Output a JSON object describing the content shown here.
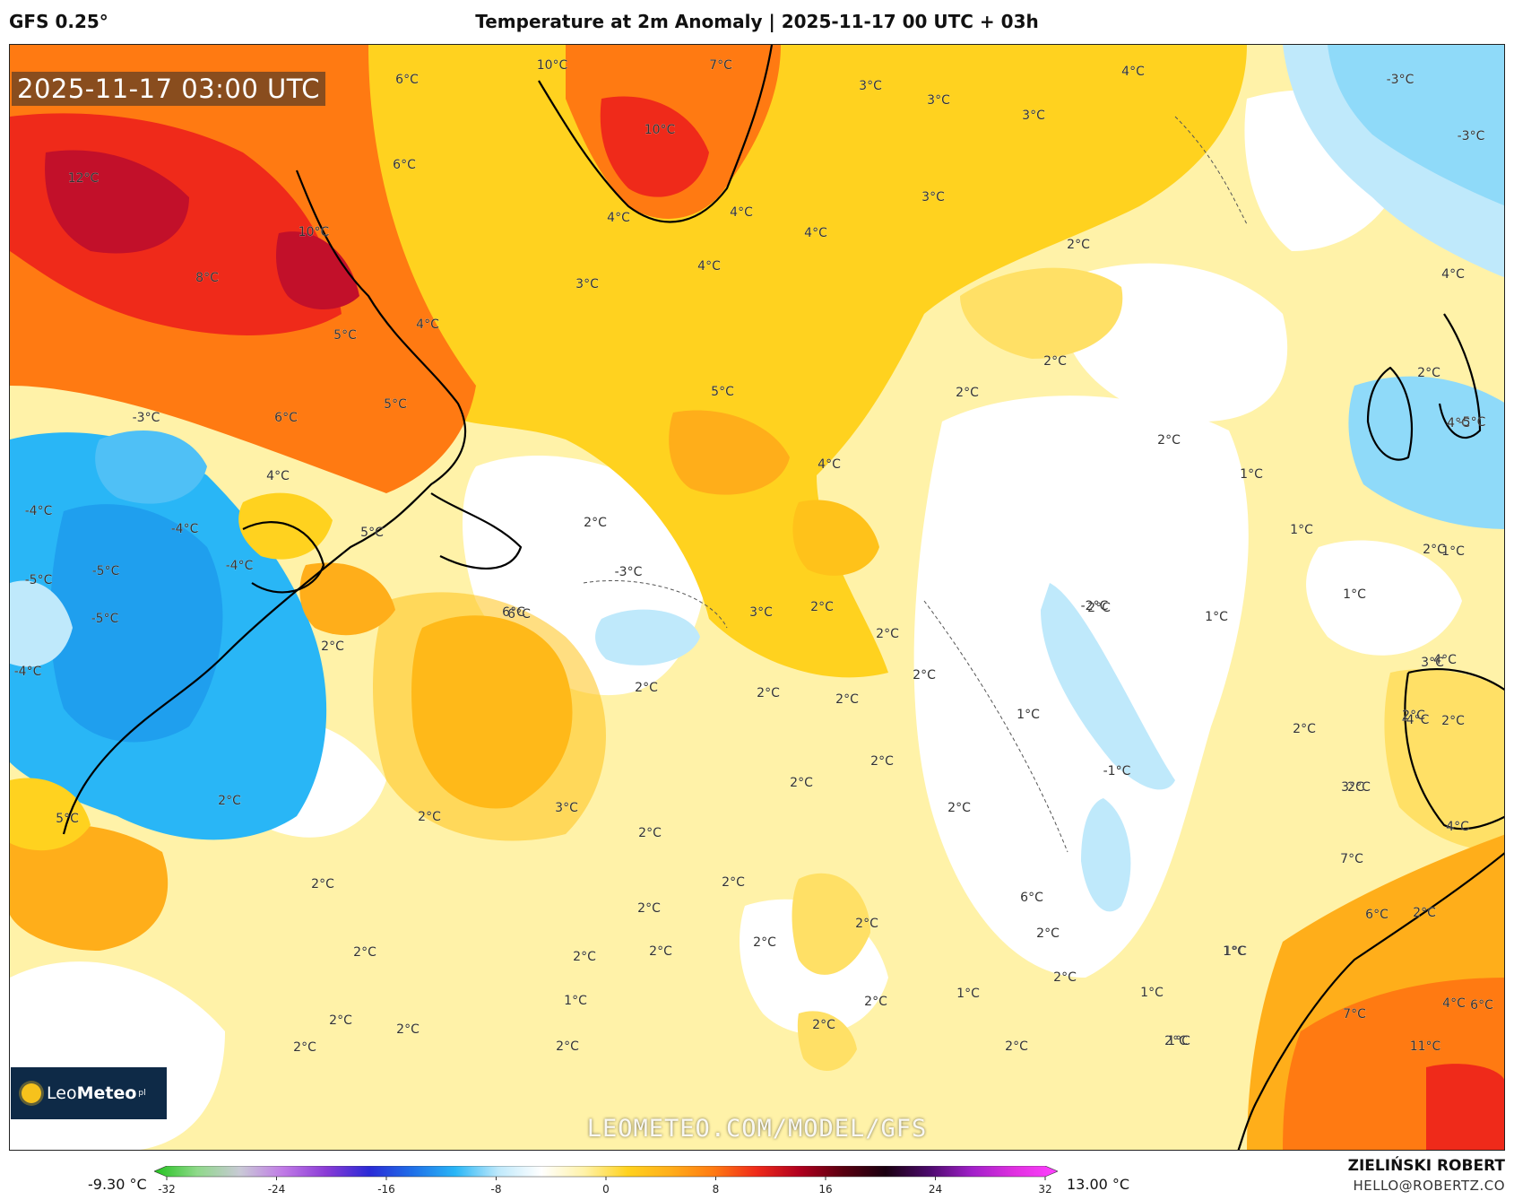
{
  "header": {
    "model": "GFS 0.25°",
    "title": "Temperature at 2m Anomaly | 2025-11-17 00 UTC + 03h"
  },
  "valid_time": "2025-11-17 03:00 UTC",
  "watermark": "LEOMETEO.COM/MODEL/GFS",
  "logo": {
    "brand_light": "Leo",
    "brand_bold": "Meteo",
    "suffix": "pl"
  },
  "legend": {
    "min_label": "-9.30 °C",
    "max_label": "13.00 °C",
    "ticks": [
      "-32",
      "-24",
      "-16",
      "-8",
      "0",
      "8",
      "16",
      "24",
      "32"
    ],
    "tick_values": [
      -32,
      -24,
      -16,
      -8,
      0,
      8,
      16,
      24,
      32
    ],
    "range": [
      -32,
      32
    ],
    "colors": [
      "#22c21e",
      "#8fd98a",
      "#c9c9d6",
      "#c07ae6",
      "#8a3bd6",
      "#2a2ad6",
      "#1f6fe8",
      "#29b6f6",
      "#bfe9fb",
      "#ffffff",
      "#fff2a8",
      "#ffd21f",
      "#ffae1a",
      "#ff7a12",
      "#ef2a1a",
      "#b0001e",
      "#5a0010",
      "#1a0010",
      "#4a0a6a",
      "#a020c8",
      "#e030e0",
      "#ff40ff"
    ]
  },
  "author": "ZIELIŃSKI ROBERT",
  "email": "HELLO@ROBERTZ.CO",
  "map_labels": [
    {
      "t": "12°C"
    },
    {
      "t": "10°C"
    },
    {
      "t": "8°C"
    },
    {
      "t": "6°C"
    },
    {
      "t": "6°C"
    },
    {
      "t": "5°C"
    },
    {
      "t": "5°C"
    },
    {
      "t": "6°C"
    },
    {
      "t": "4°C"
    },
    {
      "t": "-3°C"
    },
    {
      "t": "4°C"
    },
    {
      "t": "-4°C"
    },
    {
      "t": "-4°C"
    },
    {
      "t": "-5°C"
    },
    {
      "t": "-5°C"
    },
    {
      "t": "-5°C"
    },
    {
      "t": "-4°C"
    },
    {
      "t": "-4°C"
    },
    {
      "t": "5°C"
    },
    {
      "t": "6°C"
    },
    {
      "t": "5°C"
    },
    {
      "t": "2°C"
    },
    {
      "t": "2°C"
    },
    {
      "t": "10°C"
    },
    {
      "t": "7°C"
    },
    {
      "t": "10°C"
    },
    {
      "t": "3°C"
    },
    {
      "t": "3°C"
    },
    {
      "t": "3°C"
    },
    {
      "t": "4°C"
    },
    {
      "t": "-3°C"
    },
    {
      "t": "-3°C"
    },
    {
      "t": "3°C"
    },
    {
      "t": "4°C"
    },
    {
      "t": "4°C"
    },
    {
      "t": "4°C"
    },
    {
      "t": "4°C"
    },
    {
      "t": "3°C"
    },
    {
      "t": "2°C"
    },
    {
      "t": "5°C"
    },
    {
      "t": "2°C"
    },
    {
      "t": "2°C"
    },
    {
      "t": "4°C"
    },
    {
      "t": "2°C"
    },
    {
      "t": "1°C"
    },
    {
      "t": "2°C"
    },
    {
      "t": "-3°C"
    },
    {
      "t": "2°C"
    },
    {
      "t": "6°C"
    },
    {
      "t": "3°C"
    },
    {
      "t": "2°C"
    },
    {
      "t": "2°C"
    },
    {
      "t": "2°C"
    },
    {
      "t": "2°C"
    },
    {
      "t": "2°C"
    },
    {
      "t": "2°C"
    },
    {
      "t": "-2°C"
    },
    {
      "t": "1°C"
    },
    {
      "t": "1°C"
    },
    {
      "t": "1°C"
    },
    {
      "t": "1°C"
    },
    {
      "t": "-1°C"
    },
    {
      "t": "2°C"
    },
    {
      "t": "2°C"
    },
    {
      "t": "2°C"
    },
    {
      "t": "2°C"
    },
    {
      "t": "2°C"
    },
    {
      "t": "2°C"
    },
    {
      "t": "2°C"
    },
    {
      "t": "3°C"
    },
    {
      "t": "2°C"
    },
    {
      "t": "2°C"
    },
    {
      "t": "2°C"
    },
    {
      "t": "2°C"
    },
    {
      "t": "2°C"
    },
    {
      "t": "2°C"
    },
    {
      "t": "2°C"
    },
    {
      "t": "2°C"
    },
    {
      "t": "2°C"
    },
    {
      "t": "2°C"
    },
    {
      "t": "2°C"
    },
    {
      "t": "1°C"
    },
    {
      "t": "1°C"
    },
    {
      "t": "1°C"
    },
    {
      "t": "2°C"
    },
    {
      "t": "2°C"
    },
    {
      "t": "1°C"
    },
    {
      "t": "2°C"
    },
    {
      "t": "2°C"
    },
    {
      "t": "2°C"
    },
    {
      "t": "2°C"
    },
    {
      "t": "2°C"
    },
    {
      "t": "2°C"
    },
    {
      "t": "1°C"
    },
    {
      "t": "1°C"
    },
    {
      "t": "1°C"
    },
    {
      "t": "3°C"
    },
    {
      "t": "4°C"
    },
    {
      "t": "3°C"
    },
    {
      "t": "2°C"
    },
    {
      "t": "4°C"
    },
    {
      "t": "7°C"
    },
    {
      "t": "2°C"
    },
    {
      "t": "4°C"
    },
    {
      "t": "6°C"
    },
    {
      "t": "11°C"
    },
    {
      "t": "7°C"
    },
    {
      "t": "6°C"
    },
    {
      "t": "4°C"
    },
    {
      "t": "-5°C"
    },
    {
      "t": "-4°C"
    },
    {
      "t": "2°C"
    },
    {
      "t": "4°C"
    },
    {
      "t": "2°C"
    },
    {
      "t": "6°C"
    }
  ]
}
